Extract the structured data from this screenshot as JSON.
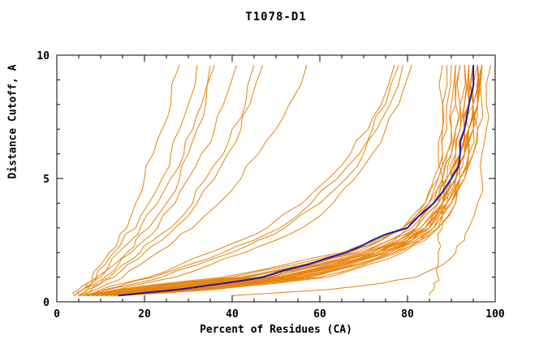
{
  "chart_data": {
    "type": "line",
    "title": "T1078-D1",
    "xlabel": "Percent of Residues (CA)",
    "ylabel": "Distance Cutoff, A",
    "xlim": [
      0,
      100
    ],
    "ylim": [
      0,
      10
    ],
    "x_ticks": [
      0,
      20,
      40,
      60,
      80,
      100
    ],
    "y_ticks": [
      0,
      5,
      10
    ],
    "grid": false,
    "legend": "none",
    "colors": {
      "model": "#e8820c",
      "highlight": "#1a1aae",
      "axis": "#000000"
    },
    "y_grid": [
      0.25,
      0.5,
      0.75,
      1,
      1.5,
      2,
      2.5,
      3,
      4,
      5,
      6,
      7,
      8,
      9.6
    ],
    "series": [
      {
        "color": "orange",
        "x": [
          6,
          18,
          30,
          44,
          58,
          68,
          74,
          79,
          84,
          86,
          87,
          88,
          88,
          89
        ]
      },
      {
        "color": "orange",
        "x": [
          7,
          20,
          34,
          48,
          60,
          70,
          76,
          80,
          85,
          87,
          88,
          89,
          89,
          90
        ]
      },
      {
        "color": "orange",
        "x": [
          8,
          22,
          36,
          50,
          62,
          72,
          78,
          82,
          86,
          88,
          89,
          90,
          90,
          91
        ]
      },
      {
        "color": "orange",
        "x": [
          6,
          16,
          28,
          42,
          56,
          67,
          74,
          79,
          84,
          87,
          89,
          90,
          91,
          91
        ]
      },
      {
        "color": "orange",
        "x": [
          9,
          24,
          38,
          52,
          64,
          73,
          79,
          83,
          87,
          89,
          90,
          91,
          91,
          92
        ]
      },
      {
        "color": "orange",
        "x": [
          7,
          19,
          32,
          46,
          59,
          70,
          77,
          81,
          86,
          88,
          90,
          91,
          92,
          92
        ]
      },
      {
        "color": "orange",
        "x": [
          10,
          26,
          40,
          54,
          65,
          74,
          80,
          84,
          88,
          90,
          91,
          92,
          92,
          93
        ]
      },
      {
        "color": "orange",
        "x": [
          8,
          21,
          35,
          49,
          61,
          71,
          78,
          82,
          87,
          89,
          91,
          92,
          93,
          93
        ]
      },
      {
        "color": "orange",
        "x": [
          11,
          28,
          42,
          55,
          66,
          75,
          81,
          85,
          88,
          90,
          92,
          93,
          93,
          94
        ]
      },
      {
        "color": "orange",
        "x": [
          9,
          23,
          37,
          51,
          63,
          73,
          79,
          84,
          88,
          91,
          92,
          93,
          94,
          94
        ]
      },
      {
        "color": "orange",
        "x": [
          12,
          30,
          44,
          57,
          68,
          76,
          82,
          86,
          89,
          91,
          93,
          94,
          94,
          95
        ]
      },
      {
        "color": "orange",
        "x": [
          10,
          25,
          39,
          53,
          64,
          74,
          80,
          85,
          89,
          91,
          93,
          94,
          95,
          95
        ]
      },
      {
        "color": "orange",
        "x": [
          13,
          32,
          46,
          58,
          69,
          77,
          83,
          86,
          90,
          92,
          93,
          94,
          95,
          95
        ]
      },
      {
        "color": "orange",
        "x": [
          11,
          27,
          41,
          55,
          66,
          75,
          81,
          85,
          89,
          92,
          94,
          95,
          95,
          96
        ]
      },
      {
        "color": "orange",
        "x": [
          14,
          34,
          48,
          60,
          70,
          78,
          83,
          87,
          90,
          92,
          94,
          95,
          96,
          96
        ]
      },
      {
        "color": "orange",
        "x": [
          12,
          29,
          43,
          56,
          67,
          76,
          82,
          86,
          90,
          93,
          94,
          95,
          96,
          96
        ]
      },
      {
        "color": "orange",
        "x": [
          15,
          36,
          50,
          62,
          71,
          79,
          84,
          87,
          91,
          93,
          95,
          96,
          96,
          97
        ]
      },
      {
        "color": "orange",
        "x": [
          13,
          31,
          45,
          58,
          68,
          77,
          83,
          87,
          91,
          93,
          95,
          96,
          97,
          97
        ]
      },
      {
        "color": "orange",
        "x": [
          8,
          20,
          33,
          47,
          60,
          71,
          78,
          83,
          88,
          91,
          93,
          95,
          96,
          97
        ]
      },
      {
        "color": "orange",
        "x": [
          6,
          15,
          26,
          40,
          54,
          66,
          74,
          80,
          86,
          90,
          92,
          94,
          95,
          96
        ]
      },
      {
        "color": "orange",
        "x": [
          7,
          17,
          29,
          43,
          57,
          69,
          76,
          82,
          87,
          91,
          93,
          94,
          96,
          96
        ]
      },
      {
        "color": "orange",
        "x": [
          9,
          22,
          36,
          50,
          62,
          73,
          80,
          84,
          89,
          92,
          94,
          95,
          96,
          97
        ]
      },
      {
        "color": "orange",
        "x": [
          5,
          14,
          25,
          38,
          52,
          65,
          73,
          79,
          85,
          89,
          92,
          93,
          95,
          95
        ]
      },
      {
        "color": "orange",
        "x": [
          10,
          24,
          38,
          52,
          63,
          73,
          80,
          84,
          88,
          90,
          92,
          93,
          94,
          94
        ]
      },
      {
        "color": "orange",
        "x": [
          11,
          26,
          40,
          53,
          65,
          75,
          81,
          85,
          89,
          91,
          93,
          94,
          95,
          96
        ]
      },
      {
        "color": "orange",
        "x": [
          4,
          6,
          7,
          8,
          10,
          12,
          14,
          16,
          18,
          20,
          22,
          24,
          26,
          28
        ]
      },
      {
        "color": "orange",
        "x": [
          5,
          6,
          8,
          9,
          11,
          13,
          15,
          18,
          21,
          24,
          26,
          28,
          30,
          32
        ]
      },
      {
        "color": "orange",
        "x": [
          4,
          5,
          7,
          9,
          12,
          14,
          17,
          19,
          23,
          26,
          29,
          31,
          33,
          35
        ]
      },
      {
        "color": "orange",
        "x": [
          5,
          7,
          9,
          11,
          14,
          17,
          20,
          23,
          27,
          30,
          33,
          36,
          38,
          41
        ]
      },
      {
        "color": "orange",
        "x": [
          6,
          8,
          10,
          13,
          16,
          20,
          24,
          27,
          32,
          36,
          39,
          42,
          44,
          47
        ]
      },
      {
        "color": "orange",
        "x": [
          5,
          7,
          10,
          12,
          15,
          19,
          22,
          26,
          31,
          34,
          38,
          40,
          43,
          45
        ]
      },
      {
        "color": "orange",
        "x": [
          4,
          6,
          8,
          10,
          13,
          16,
          18,
          21,
          25,
          28,
          30,
          32,
          34,
          36
        ]
      },
      {
        "color": "orange",
        "x": [
          6,
          9,
          12,
          15,
          19,
          23,
          27,
          31,
          37,
          42,
          46,
          50,
          53,
          57
        ]
      },
      {
        "color": "orange",
        "x": [
          7,
          12,
          18,
          24,
          32,
          40,
          46,
          52,
          60,
          66,
          70,
          73,
          76,
          79
        ]
      },
      {
        "color": "orange",
        "x": [
          6,
          10,
          15,
          21,
          28,
          35,
          42,
          48,
          56,
          62,
          67,
          71,
          74,
          77
        ]
      },
      {
        "color": "orange",
        "x": [
          8,
          14,
          20,
          27,
          35,
          43,
          50,
          56,
          63,
          68,
          72,
          75,
          78,
          81
        ]
      },
      {
        "color": "orange",
        "x": [
          7,
          11,
          16,
          22,
          30,
          38,
          45,
          51,
          58,
          64,
          69,
          72,
          75,
          78
        ]
      },
      {
        "color": "orange",
        "x": [
          40,
          62,
          74,
          82,
          88,
          91,
          93,
          94,
          96,
          97,
          97,
          98,
          98,
          99
        ]
      },
      {
        "color": "orange",
        "x": [
          85,
          86,
          86,
          87,
          87,
          87,
          87,
          88,
          88,
          88,
          88,
          88,
          88,
          88
        ]
      },
      {
        "color": "blue",
        "highlight": true,
        "x": [
          14,
          28,
          38,
          47,
          57,
          66,
          72,
          80,
          86,
          90,
          92,
          93,
          94,
          95
        ]
      }
    ]
  }
}
